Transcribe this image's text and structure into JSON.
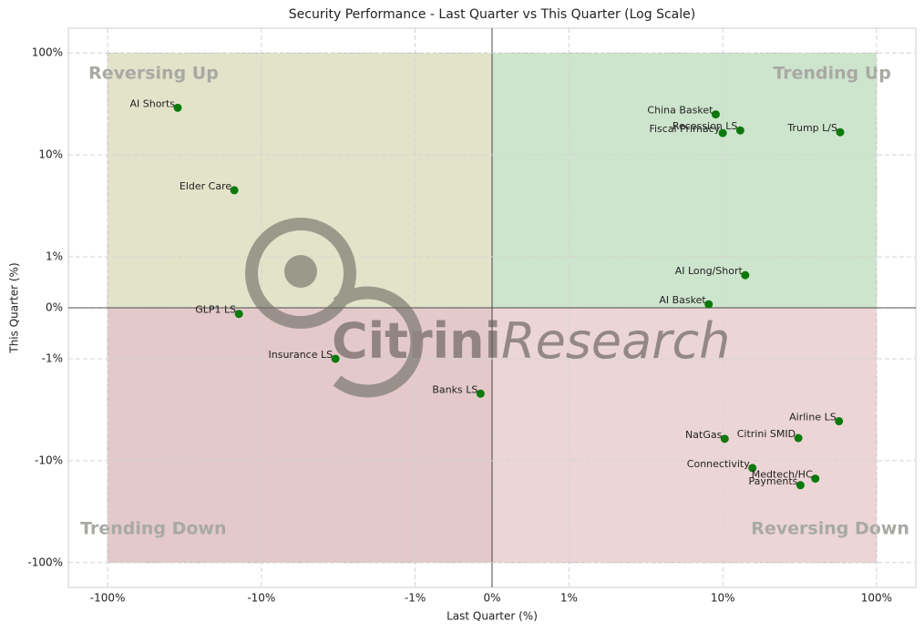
{
  "chart_data": {
    "type": "scatter",
    "title": "Security Performance - Last Quarter vs This Quarter (Log Scale)",
    "x_label": "Last Quarter (%)",
    "y_label": "This Quarter (%)",
    "xscale": "symlog",
    "yscale": "symlog",
    "xlim": [
      -180,
      180
    ],
    "ylim": [
      -175,
      175
    ],
    "xticks": [
      {
        "value": -100,
        "label": "-100%"
      },
      {
        "value": -10,
        "label": "-10%"
      },
      {
        "value": -1,
        "label": "-1%"
      },
      {
        "value": 0,
        "label": "0%"
      },
      {
        "value": 1,
        "label": "1%"
      },
      {
        "value": 10,
        "label": "10%"
      },
      {
        "value": 100,
        "label": "100%"
      }
    ],
    "yticks": [
      {
        "value": -100,
        "label": "-100%"
      },
      {
        "value": -10,
        "label": "-10%"
      },
      {
        "value": -1,
        "label": "-1%"
      },
      {
        "value": 0,
        "label": "0%"
      },
      {
        "value": 1,
        "label": "1%"
      },
      {
        "value": 10,
        "label": "10%"
      },
      {
        "value": 100,
        "label": "100%"
      }
    ],
    "grid": true,
    "quadrants": [
      {
        "label": "Reversing Up",
        "color": "#e2e3c9",
        "x": [
          -100,
          0
        ],
        "y": [
          0,
          100
        ]
      },
      {
        "label": "Trending Up",
        "color": "#cde5cc",
        "x": [
          0,
          100
        ],
        "y": [
          0,
          100
        ]
      },
      {
        "label": "Trending Down",
        "color": "#e3c9ca",
        "x": [
          -100,
          0
        ],
        "y": [
          -100,
          0
        ]
      },
      {
        "label": "Reversing Down",
        "color": "#ecd5d6",
        "x": [
          0,
          100
        ],
        "y": [
          -100,
          0
        ]
      }
    ],
    "watermark": [
      "Citrini",
      "Research"
    ],
    "series": [
      {
        "color": "#0b7a0b",
        "labels": [
          "AI Shorts",
          "Elder Care",
          "GLP1 LS",
          "Insurance LS",
          "Banks LS",
          "China Basket",
          "Recession LS",
          "Fiscal Primacy",
          "Trump L/S",
          "AI Long/Short",
          "AI Basket",
          "Airline LS",
          "NatGas",
          "Citrini SMID",
          "Connectivity",
          "Medtech/HC",
          "Payments"
        ],
        "x": [
          -35,
          -15,
          -14,
          -3.3,
          -0.15,
          9,
          13,
          10,
          58,
          14,
          8.1,
          57,
          10.3,
          31,
          15.6,
          40,
          32
        ],
        "values": [
          29,
          4.5,
          -0.12,
          -1,
          -2.2,
          25,
          17.4,
          16.4,
          16.7,
          0.64,
          0.07,
          -4.1,
          -6.1,
          -6,
          -11.8,
          -15,
          -17.4
        ]
      }
    ]
  }
}
